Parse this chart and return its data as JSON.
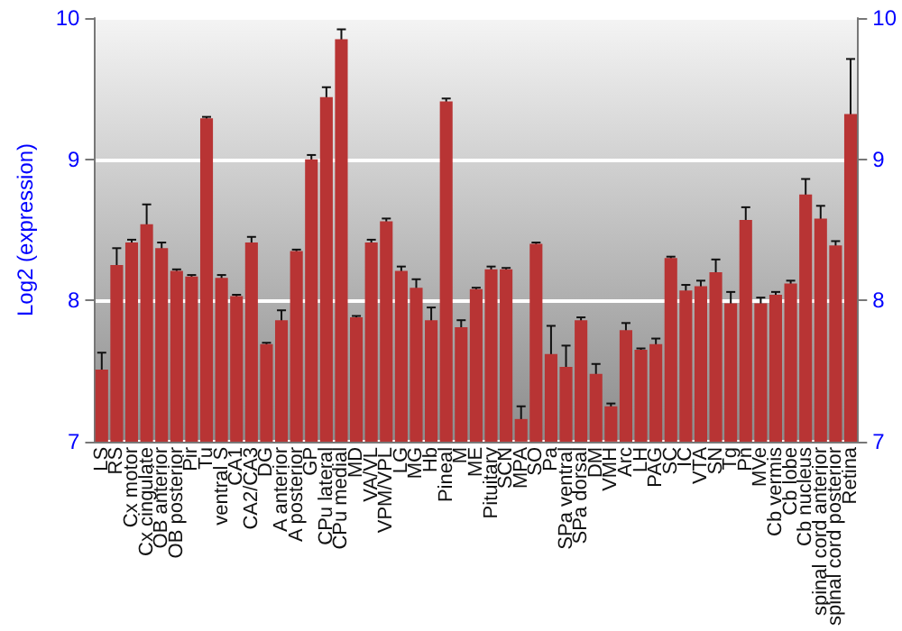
{
  "chart_data": {
    "type": "bar",
    "ylabel": "Log2 (expression)",
    "categories": [
      "LS",
      "RS",
      "Cx motor",
      "Cx cingulate",
      "OB anterior",
      "OB posterior",
      "Pir",
      "Tu",
      "ventral S",
      "CA1",
      "CA2/CA3",
      "DG",
      "A anterior",
      "A posterior",
      "GP",
      "CPu lateral",
      "CPu medial",
      "MD",
      "VA/VL",
      "VPM/VPL",
      "LG",
      "MG",
      "Hb",
      "Pineal",
      "M",
      "ME",
      "Pituitary",
      "SCN",
      "MPA",
      "SO",
      "Pa",
      "SPa ventral",
      "SPa dorsal",
      "DM",
      "VMH",
      "Arc",
      "LH",
      "PAG",
      "SC",
      "IC",
      "VTA",
      "SN",
      "Tg",
      "Pn",
      "MVe",
      "Cb vermis",
      "Cb lobe",
      "Cb nucleus",
      "spinal cord anterior",
      "spinal cord posterior",
      "Retina"
    ],
    "series": [
      {
        "color": "#b83434",
        "values": [
          7.51,
          8.25,
          8.41,
          8.54,
          8.37,
          8.21,
          8.17,
          9.29,
          8.16,
          8.03,
          8.41,
          7.69,
          7.86,
          8.35,
          9.0,
          9.44,
          9.85,
          7.88,
          8.41,
          8.56,
          8.21,
          8.09,
          7.86,
          9.41,
          7.81,
          8.08,
          8.22,
          8.22,
          7.16,
          8.4,
          7.62,
          7.53,
          7.86,
          7.48,
          7.25,
          7.79,
          7.65,
          7.69,
          8.3,
          8.07,
          8.1,
          8.2,
          7.98,
          8.57,
          7.98,
          8.04,
          8.12,
          8.75,
          8.58,
          8.39,
          9.32
        ],
        "errors": [
          0.12,
          0.12,
          0.02,
          0.14,
          0.04,
          0.01,
          0.01,
          0.01,
          0.02,
          0.01,
          0.04,
          0.01,
          0.07,
          0.01,
          0.03,
          0.07,
          0.07,
          0.01,
          0.02,
          0.02,
          0.03,
          0.06,
          0.09,
          0.02,
          0.05,
          0.01,
          0.02,
          0.01,
          0.09,
          0.01,
          0.2,
          0.15,
          0.02,
          0.07,
          0.02,
          0.05,
          0.01,
          0.04,
          0.01,
          0.04,
          0.04,
          0.09,
          0.08,
          0.09,
          0.04,
          0.02,
          0.02,
          0.11,
          0.09,
          0.03,
          0.39
        ]
      }
    ],
    "ylim": [
      7,
      10
    ],
    "yticks": [
      7,
      8,
      9,
      10
    ],
    "y2lim": [
      7,
      10
    ],
    "y2ticks": [
      7,
      8,
      9,
      10
    ],
    "grid": "y"
  }
}
